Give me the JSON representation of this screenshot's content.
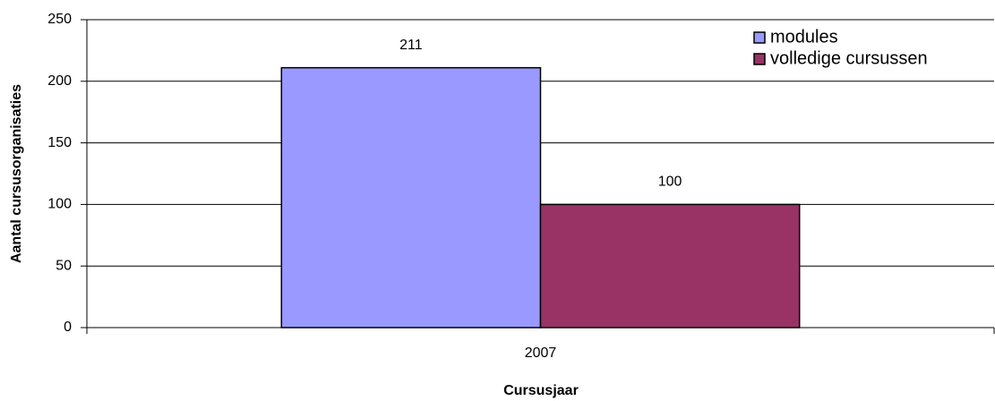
{
  "chart_data": {
    "type": "bar",
    "categories": [
      "2007"
    ],
    "series": [
      {
        "name": "modules",
        "color": "#9999ff",
        "values": [
          211
        ]
      },
      {
        "name": "volledige cursussen",
        "color": "#993366",
        "values": [
          100
        ]
      }
    ],
    "xlabel": "Cursusjaar",
    "ylabel": "Aantal cursusorganisaties",
    "ylim": [
      0,
      250
    ],
    "yticks": [
      0,
      50,
      100,
      150,
      200,
      250
    ],
    "grid": true,
    "legend": "top-right"
  }
}
